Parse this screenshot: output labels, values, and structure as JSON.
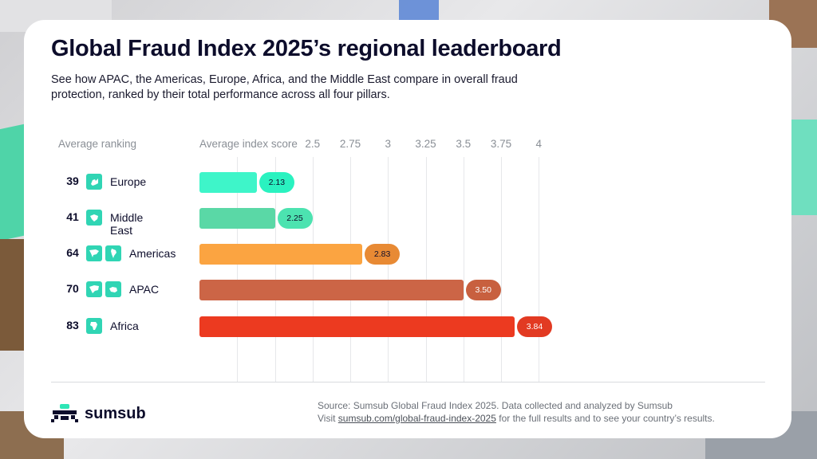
{
  "header": {
    "title": "Global Fraud Index 2025’s regional leaderboard",
    "subtitle": "See how APAC, the Americas, Europe, Africa, and the Middle East compare in overall fraud protection, ranked by their total performance across all four pillars."
  },
  "columns": {
    "ranking": "Average ranking",
    "score": "Average index score"
  },
  "chart_data": {
    "type": "bar",
    "orientation": "horizontal",
    "title": "Global Fraud Index 2025’s regional leaderboard",
    "xlabel": "Average index score",
    "categories": [
      "Europe",
      "Middle East",
      "Americas",
      "APAC",
      "Africa"
    ],
    "values": [
      2.13,
      2.25,
      2.83,
      3.5,
      3.84
    ],
    "value_labels": [
      "2.13",
      "2.25",
      "2.83",
      "3.50",
      "3.84"
    ],
    "rankings": [
      "39",
      "41",
      "64",
      "70",
      "83"
    ],
    "xlim": [
      1.75,
      4.25
    ],
    "ticks": [
      2.5,
      2.75,
      3,
      3.25,
      3.5,
      3.75,
      4
    ],
    "tick_labels": [
      "2.5",
      "2.75",
      "3",
      "3.25",
      "3.5",
      "3.75",
      "4"
    ],
    "grid_values": [
      2.0,
      2.25,
      2.5,
      2.75,
      3.0,
      3.25,
      3.5,
      3.75,
      4.0
    ],
    "bar_colors": [
      "#3ef5c9",
      "#5ad8a6",
      "#fba441",
      "#cc6546",
      "#ec3a20"
    ],
    "label_colors": [
      "#2af2c0",
      "#4ce3b0",
      "#e88a34",
      "#c8603f",
      "#e23a22"
    ],
    "label_text_colors": [
      "#0d0d2b",
      "#0d0d2b",
      "#0d0d2b",
      "#ffffff",
      "#ffffff"
    ],
    "flag_icons": [
      [
        "europe-map-icon"
      ],
      [
        "middle-east-map-icon"
      ],
      [
        "north-america-map-icon",
        "south-america-map-icon"
      ],
      [
        "asia-map-icon",
        "australia-map-icon"
      ],
      [
        "africa-map-icon"
      ]
    ]
  },
  "footer": {
    "brand": "sumsub",
    "source_line1": "Source: Sumsub Global Fraud Index 2025. Data collected and analyzed by Sumsub",
    "source_prefix": "Visit",
    "source_link": "sumsub.com/global-fraud-index-2025",
    "source_suffix": "for the full results and to see your country’s results."
  }
}
